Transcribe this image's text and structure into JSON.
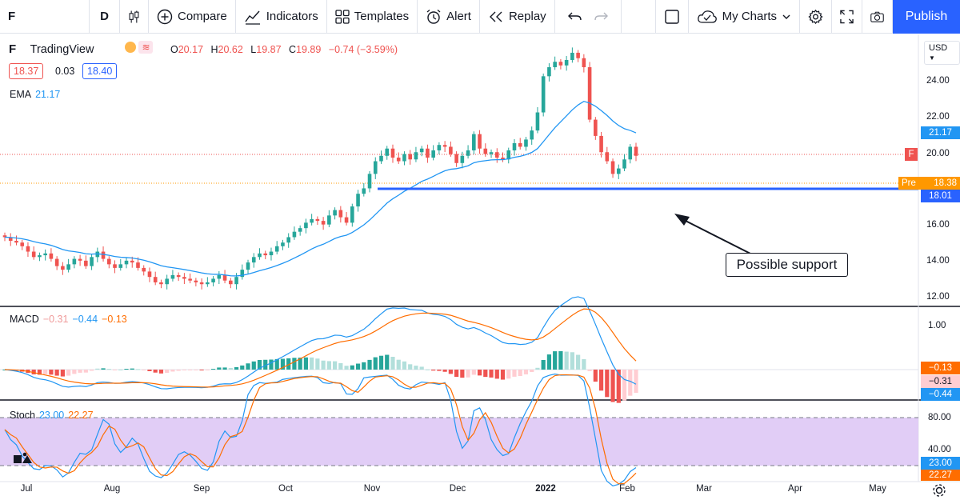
{
  "toolbar": {
    "symbol": "F",
    "interval": "D",
    "compare": "Compare",
    "indicators": "Indicators",
    "templates": "Templates",
    "alert": "Alert",
    "replay": "Replay",
    "layout_name": "My Charts",
    "publish": "Publish"
  },
  "legend": {
    "symbol": "F",
    "source": "TradingView",
    "ohlc": {
      "o_label": "O",
      "o": "20.17",
      "h_label": "H",
      "h": "20.62",
      "l_label": "L",
      "l": "19.87",
      "c_label": "C",
      "c": "19.89",
      "change": "−0.74 (−3.59%)"
    },
    "bid": "18.37",
    "spread": "0.03",
    "ask": "18.40",
    "ema_label": "EMA",
    "ema_value": "21.17",
    "currency": "USD"
  },
  "price_axis": {
    "ticks": [
      "24.00",
      "22.00",
      "20.00",
      "18.00",
      "16.00",
      "14.00",
      "12.00"
    ],
    "tags": {
      "ema": "21.17",
      "symbol_letter": "F",
      "pre_label": "Pre",
      "pre": "18.38",
      "support": "18.01"
    }
  },
  "macd": {
    "label": "MACD",
    "hist": "−0.31",
    "macd": "−0.44",
    "signal": "−0.13",
    "axis_ticks": [
      "1.00"
    ],
    "tags": [
      "−0.13",
      "−0.31",
      "−0.44"
    ]
  },
  "stoch": {
    "label": "Stoch",
    "k": "23.00",
    "d": "22.27",
    "axis_ticks": [
      "80.00",
      "40.00"
    ],
    "tags": [
      "23.00",
      "22.27"
    ]
  },
  "time_axis": [
    "Jul",
    "Aug",
    "Sep",
    "Oct",
    "Nov",
    "Dec",
    "2022",
    "Feb",
    "Mar",
    "Apr",
    "May"
  ],
  "annotation": "Possible support",
  "colors": {
    "up": "#26a69a",
    "down": "#ef5350",
    "ema": "#2196f3",
    "support_line": "#2962ff",
    "signal": "#ff6d00",
    "stoch_band": "#e1cdf6",
    "accent": "#2962ff",
    "pre_tag": "#ff9800"
  },
  "chart_data": {
    "type": "candlestick",
    "series_prices": [
      15.4,
      15.2,
      15.1,
      14.9,
      14.6,
      14.3,
      14.4,
      14.5,
      14.2,
      13.8,
      13.6,
      13.9,
      14.2,
      14.1,
      13.8,
      14.3,
      14.6,
      14.2,
      13.9,
      13.7,
      13.9,
      14.1,
      14.0,
      13.7,
      13.5,
      13.2,
      12.9,
      12.8,
      13.1,
      13.3,
      13.2,
      13.1,
      13.0,
      12.9,
      12.8,
      12.9,
      13.1,
      13.3,
      13.0,
      12.8,
      13.2,
      13.6,
      14.0,
      14.3,
      14.5,
      14.4,
      14.6,
      14.9,
      15.1,
      15.4,
      15.7,
      15.9,
      16.2,
      16.4,
      16.3,
      16.1,
      16.6,
      16.9,
      16.5,
      16.2,
      17.1,
      17.8,
      18.1,
      18.9,
      19.6,
      19.9,
      20.3,
      19.8,
      19.6,
      20.0,
      19.7,
      20.1,
      20.3,
      19.8,
      20.2,
      20.5,
      20.4,
      20.0,
      19.5,
      19.9,
      20.2,
      21.1,
      20.3,
      20.0,
      20.1,
      19.8,
      19.7,
      20.2,
      20.6,
      20.4,
      20.8,
      21.3,
      22.3,
      24.3,
      24.8,
      25.1,
      24.9,
      25.2,
      25.6,
      25.3,
      24.8,
      21.9,
      21.0,
      20.1,
      19.6,
      18.9,
      19.2,
      19.7,
      20.4,
      19.9
    ],
    "ema_current": 21.17,
    "support_level": 18.01,
    "ylim": [
      11.5,
      26.5
    ],
    "x_ticks": [
      "Jul",
      "Aug",
      "Sep",
      "Oct",
      "Nov",
      "Dec",
      "2022",
      "Feb",
      "Mar",
      "Apr",
      "May"
    ]
  }
}
